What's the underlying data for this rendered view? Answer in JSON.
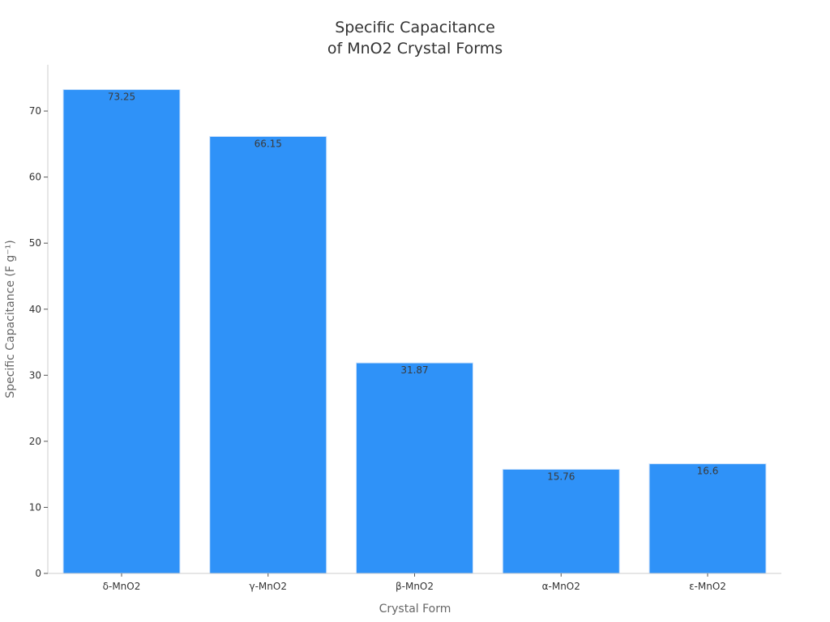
{
  "chart_data": {
    "type": "bar",
    "title_lines": [
      "Specific Capacitance",
      "of MnO2 Crystal Forms"
    ],
    "xlabel": "Crystal Form",
    "ylabel": "Specific Capacitance (F g⁻¹)",
    "categories": [
      "δ-MnO2",
      "γ-MnO2",
      "β-MnO2",
      "α-MnO2",
      "ε-MnO2"
    ],
    "values": [
      73.25,
      66.15,
      31.87,
      15.76,
      16.6
    ],
    "value_labels": [
      "73.25",
      "66.15",
      "31.87",
      "15.76",
      "16.6"
    ],
    "ylim": [
      0,
      77
    ],
    "yticks": [
      0,
      10,
      20,
      30,
      40,
      50,
      60,
      70
    ],
    "grid": false,
    "bar_color": "#2f92f8",
    "bar_edge_color": "#cfe3fb"
  }
}
